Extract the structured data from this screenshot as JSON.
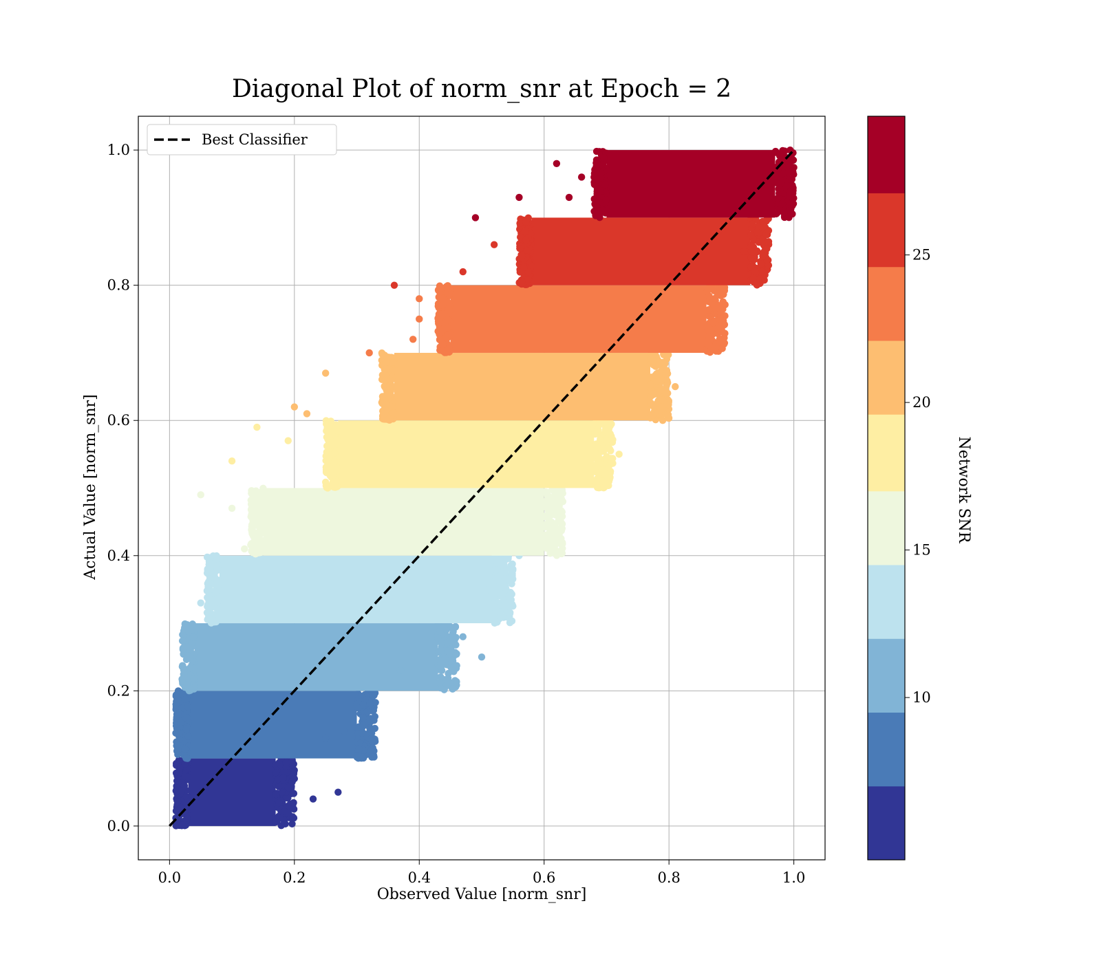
{
  "chart_data": {
    "type": "scatter",
    "title": "Diagonal Plot of norm_snr at Epoch = 2",
    "xlabel": "Observed Value [norm_snr]",
    "ylabel": "Actual Value [norm_snr]",
    "xlim": [
      -0.05,
      1.05
    ],
    "ylim": [
      -0.05,
      1.05
    ],
    "xticks": [
      "0.0",
      "0.2",
      "0.4",
      "0.6",
      "0.8",
      "1.0"
    ],
    "yticks": [
      "0.0",
      "0.2",
      "0.4",
      "0.6",
      "0.8",
      "1.0"
    ],
    "grid": true,
    "legend": {
      "placement": "upper-left",
      "entries": [
        {
          "label": "Best Classifier",
          "style": "dashed",
          "color": "#000000"
        }
      ]
    },
    "reference_line": {
      "label": "Best Classifier",
      "x": [
        0,
        1
      ],
      "y": [
        0,
        1
      ]
    },
    "colorbar": {
      "label": "Network SNR",
      "range": [
        4.5,
        29.7
      ],
      "ticks": [
        "10",
        "15",
        "20",
        "25"
      ],
      "bands": [
        {
          "from": 4.5,
          "to": 7.0,
          "color": "#313695"
        },
        {
          "from": 7.0,
          "to": 9.5,
          "color": "#4a7bb7"
        },
        {
          "from": 9.5,
          "to": 12.0,
          "color": "#81b4d6"
        },
        {
          "from": 12.0,
          "to": 14.5,
          "color": "#bde2ee"
        },
        {
          "from": 14.5,
          "to": 17.0,
          "color": "#eef7de"
        },
        {
          "from": 17.0,
          "to": 19.6,
          "color": "#feeea3"
        },
        {
          "from": 19.6,
          "to": 22.1,
          "color": "#fdbe71"
        },
        {
          "from": 22.1,
          "to": 24.6,
          "color": "#f57c4a"
        },
        {
          "from": 24.6,
          "to": 27.1,
          "color": "#da372a"
        },
        {
          "from": 27.1,
          "to": 29.7,
          "color": "#a50026"
        }
      ]
    },
    "series_bands": [
      {
        "y_range": [
          0.0,
          0.1
        ],
        "color": "#313695",
        "core_x": [
          0.03,
          0.17
        ],
        "outliers": [
          [
            0.27,
            0.05
          ],
          [
            0.23,
            0.04
          ],
          [
            0.2,
            0.07
          ],
          [
            0.18,
            0.05
          ]
        ]
      },
      {
        "y_range": [
          0.1,
          0.2
        ],
        "color": "#4a7bb7",
        "core_x": [
          0.03,
          0.3
        ],
        "outliers": [
          [
            0.28,
            0.14
          ],
          [
            0.25,
            0.13
          ],
          [
            0.31,
            0.16
          ]
        ]
      },
      {
        "y_range": [
          0.2,
          0.3
        ],
        "color": "#81b4d6",
        "core_x": [
          0.04,
          0.43
        ],
        "outliers": [
          [
            0.5,
            0.25
          ],
          [
            0.47,
            0.28
          ],
          [
            0.37,
            0.23
          ],
          [
            0.06,
            0.29
          ]
        ]
      },
      {
        "y_range": [
          0.3,
          0.4
        ],
        "color": "#bde2ee",
        "core_x": [
          0.08,
          0.52
        ],
        "outliers": [
          [
            0.51,
            0.35
          ],
          [
            0.55,
            0.38
          ],
          [
            0.56,
            0.4
          ],
          [
            0.05,
            0.33
          ]
        ]
      },
      {
        "y_range": [
          0.4,
          0.5
        ],
        "color": "#eef7de",
        "core_x": [
          0.15,
          0.6
        ],
        "outliers": [
          [
            0.05,
            0.49
          ],
          [
            0.1,
            0.47
          ],
          [
            0.63,
            0.48
          ],
          [
            0.61,
            0.45
          ],
          [
            0.12,
            0.41
          ]
        ]
      },
      {
        "y_range": [
          0.5,
          0.6
        ],
        "color": "#feeea3",
        "core_x": [
          0.27,
          0.68
        ],
        "outliers": [
          [
            0.14,
            0.59
          ],
          [
            0.1,
            0.54
          ],
          [
            0.19,
            0.57
          ],
          [
            0.7,
            0.57
          ],
          [
            0.72,
            0.55
          ]
        ]
      },
      {
        "y_range": [
          0.6,
          0.7
        ],
        "color": "#fdbe71",
        "core_x": [
          0.36,
          0.77
        ],
        "outliers": [
          [
            0.2,
            0.62
          ],
          [
            0.25,
            0.67
          ],
          [
            0.22,
            0.61
          ],
          [
            0.79,
            0.63
          ],
          [
            0.81,
            0.65
          ]
        ]
      },
      {
        "y_range": [
          0.7,
          0.8
        ],
        "color": "#f57c4a",
        "core_x": [
          0.45,
          0.86
        ],
        "outliers": [
          [
            0.32,
            0.7
          ],
          [
            0.4,
            0.75
          ],
          [
            0.4,
            0.78
          ],
          [
            0.85,
            0.72
          ],
          [
            0.88,
            0.74
          ],
          [
            0.39,
            0.72
          ]
        ]
      },
      {
        "y_range": [
          0.8,
          0.9
        ],
        "color": "#da372a",
        "core_x": [
          0.58,
          0.93
        ],
        "outliers": [
          [
            0.36,
            0.8
          ],
          [
            0.47,
            0.82
          ],
          [
            0.52,
            0.86
          ],
          [
            0.57,
            0.88
          ],
          [
            0.95,
            0.82
          ],
          [
            0.92,
            0.85
          ]
        ]
      },
      {
        "y_range": [
          0.9,
          1.0
        ],
        "color": "#a50026",
        "core_x": [
          0.7,
          0.97
        ],
        "outliers": [
          [
            0.49,
            0.9
          ],
          [
            0.56,
            0.93
          ],
          [
            0.62,
            0.98
          ],
          [
            0.66,
            0.96
          ],
          [
            0.64,
            0.93
          ]
        ]
      }
    ]
  }
}
